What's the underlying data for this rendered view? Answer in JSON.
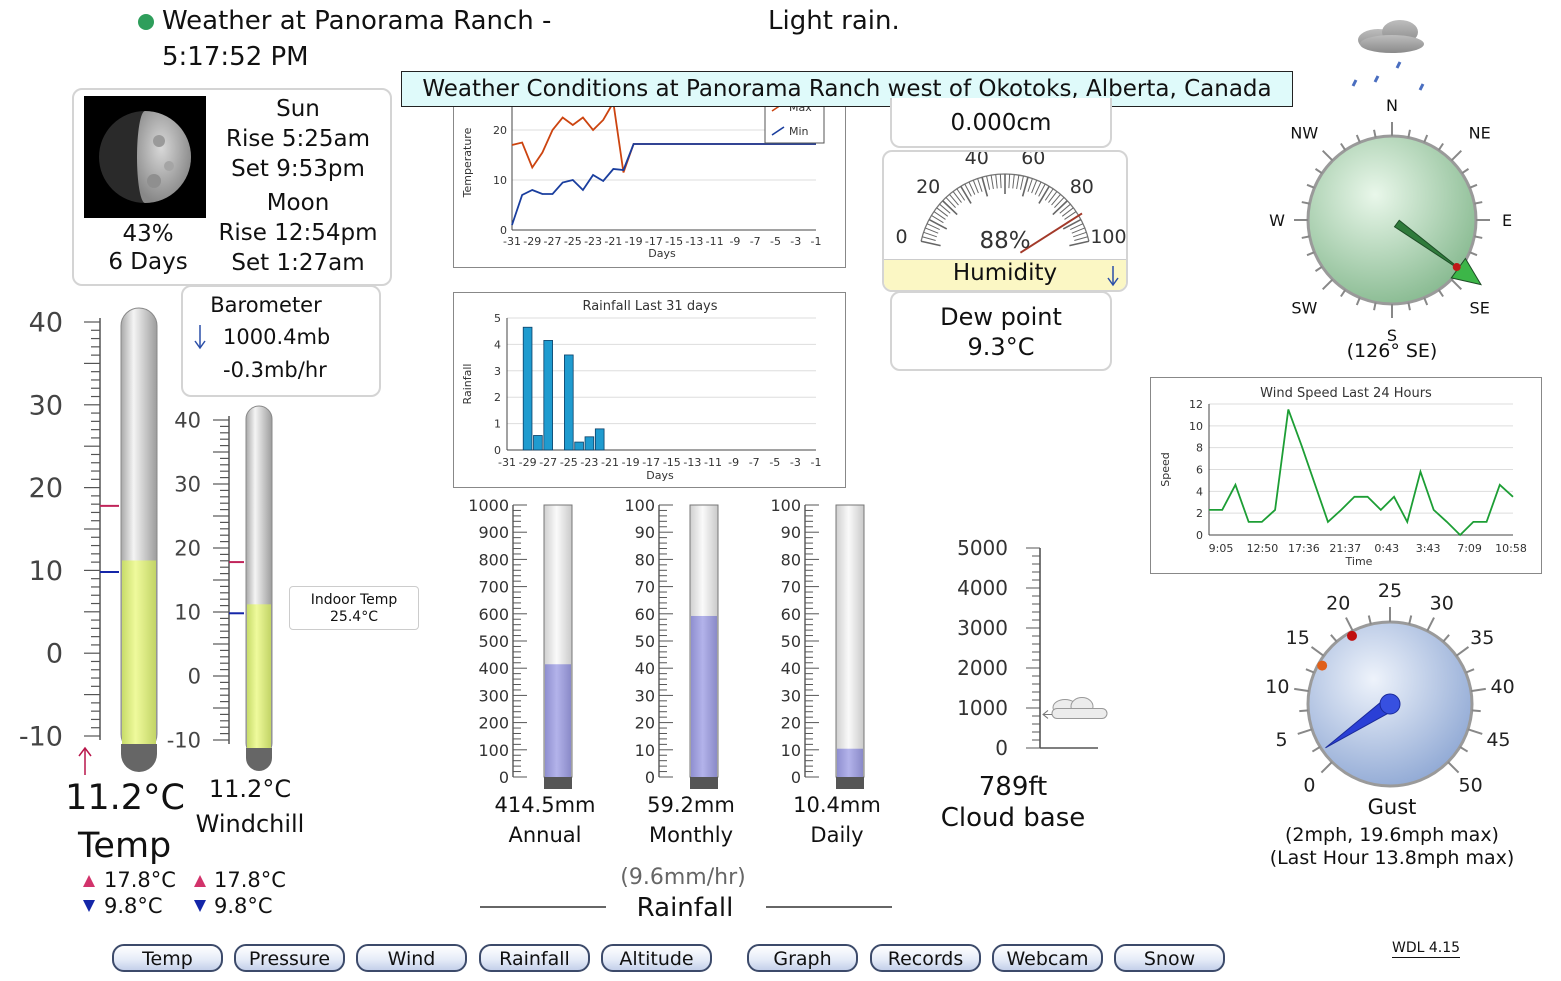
{
  "header": {
    "status_dot_color": "#2e9e5b",
    "title": "Weather at Panorama Ranch -",
    "time": "5:17:52 PM",
    "condition": "Light rain."
  },
  "banner": "Weather Conditions at Panorama Ranch west of Okotoks, Alberta, Canada",
  "astro": {
    "moon_illumination": "43%",
    "moon_age": "6 Days",
    "sun_label": "Sun",
    "sun_rise": "Rise 5:25am",
    "sun_set": "Set 9:53pm",
    "moon_label": "Moon",
    "moon_rise": "Rise 12:54pm",
    "moon_set": "Set 1:27am"
  },
  "barometer": {
    "label": "Barometer",
    "trend_icon": "arrow-down-icon",
    "value": "1000.4mb",
    "rate": "-0.3mb/hr"
  },
  "temp": {
    "ticks": [
      "40",
      "30",
      "20",
      "10",
      "0",
      "-10"
    ],
    "value": "11.2°C",
    "label": "Temp",
    "high": "17.8°C",
    "low": "9.8°C",
    "scale_min": -10,
    "scale_max": 40,
    "current": 11.2,
    "max": 17.8,
    "min": 9.8
  },
  "windchill": {
    "ticks": [
      "40",
      "30",
      "20",
      "10",
      "0",
      "-10"
    ],
    "value": "11.2°C",
    "label": "Windchill",
    "high": "17.8°C",
    "low": "9.8°C",
    "scale_min": -10,
    "scale_max": 40,
    "current": 11.2,
    "max": 17.8,
    "min": 9.8
  },
  "indoor": {
    "label": "Indoor Temp",
    "value": "25.4°C"
  },
  "temp_chart": {
    "ylabel": "Temperature",
    "xlabel": "Days",
    "legend_max": "Max",
    "legend_min": "Min",
    "yticks": [
      "20",
      "10",
      "0"
    ]
  },
  "rain_chart": {
    "title": "Rainfall Last 31 days",
    "ylabel": "Rainfall",
    "xlabel": "Days",
    "yticks": [
      "5",
      "4",
      "3",
      "2",
      "1",
      "0"
    ]
  },
  "xticks_days": [
    "-31",
    "-29",
    "-27",
    "-25",
    "-23",
    "-21",
    "-19",
    "-17",
    "-15",
    "-13",
    "-11",
    "-9",
    "-7",
    "-5",
    "-3",
    "-1"
  ],
  "chart_data": [
    {
      "type": "line",
      "ylabel": "Temperature",
      "xlabel": "Days",
      "x": [
        -31,
        -30,
        -29,
        -28,
        -27,
        -26,
        -25,
        -24,
        -23,
        -22,
        -21,
        -20,
        -19,
        -18,
        -17,
        -16,
        -15,
        -14,
        -13,
        -12,
        -11,
        -10,
        -9,
        -8,
        -7,
        -6,
        -5,
        -4,
        -3,
        -2,
        -1
      ],
      "ylim": [
        0,
        27
      ],
      "series": [
        {
          "name": "Max",
          "color": "#cc4410",
          "values": [
            17,
            17.5,
            12.5,
            15.5,
            20,
            22.5,
            21,
            22.5,
            20,
            22,
            25.5,
            11.5,
            17.2,
            17.2,
            17.2,
            17.2,
            17.2,
            17.2,
            17.2,
            17.2,
            17.2,
            17.2,
            17.2,
            17.2,
            17.2,
            17.2,
            17.2,
            17.2,
            17.2,
            17.2,
            17.2
          ]
        },
        {
          "name": "Min",
          "color": "#1a3e9e",
          "values": [
            1,
            7,
            8,
            7.2,
            7.2,
            9.5,
            10,
            8,
            11,
            9.8,
            12.2,
            12,
            17.2,
            17.2,
            17.2,
            17.2,
            17.2,
            17.2,
            17.2,
            17.2,
            17.2,
            17.2,
            17.2,
            17.2,
            17.2,
            17.2,
            17.2,
            17.2,
            17.2,
            17.2,
            17.2
          ]
        }
      ]
    },
    {
      "type": "bar",
      "title": "Rainfall Last 31 days",
      "ylabel": "Rainfall",
      "xlabel": "Days",
      "ylim": [
        0,
        5
      ],
      "x": [
        -31,
        -30,
        -29,
        -28,
        -27,
        -26,
        -25,
        -24,
        -23,
        -22,
        -21,
        -20,
        -19,
        -18,
        -17,
        -16,
        -15,
        -14,
        -13,
        -12,
        -11,
        -10,
        -9,
        -8,
        -7,
        -6,
        -5,
        -4,
        -3,
        -2,
        -1
      ],
      "values": [
        0,
        0,
        4.65,
        0.55,
        4.15,
        0,
        3.6,
        0.3,
        0.5,
        0.8,
        0,
        0,
        0,
        0,
        0,
        0,
        0,
        0,
        0,
        0,
        0,
        0,
        0,
        0,
        0,
        0,
        0,
        0,
        0,
        0,
        0
      ],
      "color": "#1f9bcf"
    },
    {
      "type": "line",
      "title": "Wind Speed Last 24 Hours",
      "ylabel": "Speed",
      "xlabel": "Time",
      "xticks": [
        "9:05",
        "12:50",
        "17:36",
        "21:37",
        "0:43",
        "3:43",
        "7:09",
        "10:58"
      ],
      "yticks": [
        "12",
        "10",
        "8",
        "6",
        "4",
        "2",
        "0"
      ],
      "ylim": [
        0,
        12
      ],
      "values": [
        2.3,
        2.3,
        4.6,
        1.2,
        1.2,
        2.3,
        11.5,
        8.2,
        4.7,
        1.2,
        2.3,
        3.5,
        3.5,
        2.3,
        3.5,
        1.2,
        5.8,
        2.3,
        1.2,
        0,
        1.2,
        1.2,
        4.6,
        3.5
      ],
      "color": "#1d9e35"
    }
  ],
  "gauges": {
    "rain_ticks_annual": [
      "1000",
      "900",
      "800",
      "700",
      "600",
      "500",
      "400",
      "300",
      "200",
      "100",
      "0"
    ],
    "rain_ticks_100": [
      "100",
      "90",
      "80",
      "70",
      "60",
      "50",
      "40",
      "30",
      "20",
      "10",
      "0"
    ],
    "annual": {
      "value": "414.5mm",
      "label": "Annual",
      "fraction": 0.4145
    },
    "monthly": {
      "value": "59.2mm",
      "label": "Monthly",
      "fraction": 0.592
    },
    "daily": {
      "value": "10.4mm",
      "label": "Daily",
      "fraction": 0.104
    },
    "rain_rate": "(9.6mm/hr)",
    "rain_label": "Rainfall"
  },
  "cloudbase": {
    "ticks": [
      "5000",
      "4000",
      "3000",
      "2000",
      "1000",
      "0"
    ],
    "value": "789ft",
    "label": "Cloud base",
    "feet": 789
  },
  "rain_total": {
    "value": "0.000cm"
  },
  "humidity": {
    "ticks": [
      "0",
      "20",
      "40",
      "60",
      "80",
      "100"
    ],
    "value": "88%",
    "label": "Humidity",
    "percent": 88,
    "trend_icon": "arrow-down-icon"
  },
  "dewpoint": {
    "label": "Dew point",
    "value": "9.3°C"
  },
  "wind_dir": {
    "cardinals": [
      "N",
      "NE",
      "E",
      "SE",
      "S",
      "SW",
      "W",
      "NW"
    ],
    "readout": "(126° SE)",
    "degrees": 126,
    "icon": "rain-cloud-icon"
  },
  "gust": {
    "ticks": [
      "0",
      "5",
      "10",
      "15",
      "20",
      "25",
      "30",
      "35",
      "40",
      "45",
      "50"
    ],
    "label": "Gust",
    "detail": "(2mph, 19.6mph max)",
    "last_hour": "(Last Hour 13.8mph max)",
    "speed": 2,
    "max_today": 19.6,
    "max_hour": 13.8
  },
  "nav": [
    "Temp",
    "Pressure",
    "Wind",
    "Rainfall",
    "Altitude",
    "Graph",
    "Records",
    "Webcam",
    "Snow"
  ],
  "version": "WDL 4.15"
}
